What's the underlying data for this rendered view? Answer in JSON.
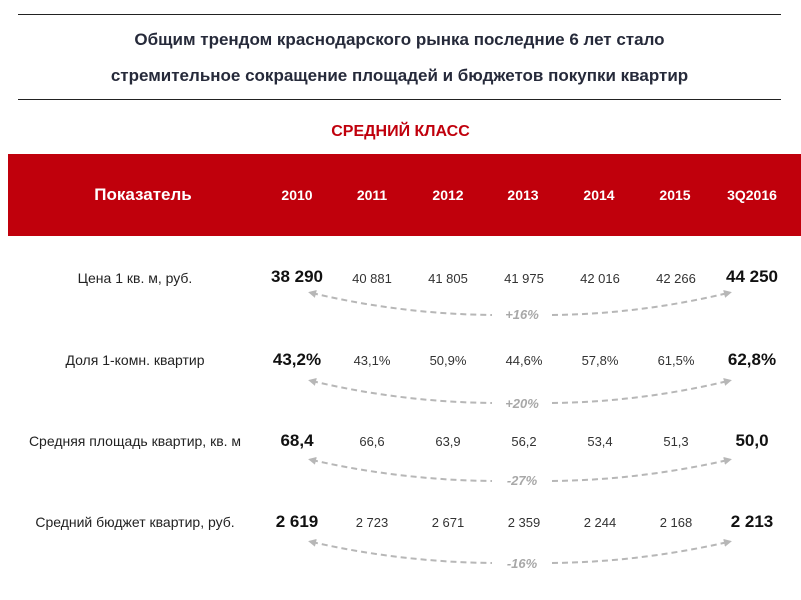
{
  "title": {
    "line1": "Общим трендом краснодарского рынка последние 6 лет стало",
    "line2": "стремительное сокращение площадей и бюджетов покупки квартир"
  },
  "subtitle": "СРЕДНИЙ КЛАСС",
  "colors": {
    "header_bg": "#c0000c",
    "subtitle": "#c0000c",
    "arc": "#b7b7b7"
  },
  "table": {
    "header": {
      "indicator": "Показатель",
      "years": [
        "2010",
        "2011",
        "2012",
        "2013",
        "2014",
        "2015",
        "3Q2016"
      ]
    },
    "rows": [
      {
        "label": "Цена 1 кв. м, руб.",
        "values": [
          "38 290",
          "40 881",
          "41 805",
          "41 975",
          "42 016",
          "42 266",
          "44 250"
        ],
        "change": "+16%"
      },
      {
        "label": "Доля 1-комн. квартир",
        "values": [
          "43,2%",
          "43,1%",
          "50,9%",
          "44,6%",
          "57,8%",
          "61,5%",
          "62,8%"
        ],
        "change": "+20%"
      },
      {
        "label": "Средняя площадь квартир, кв. м",
        "values": [
          "68,4",
          "66,6",
          "63,9",
          "56,2",
          "53,4",
          "51,3",
          "50,0"
        ],
        "change": "-27%"
      },
      {
        "label": "Средний бюджет квартир, руб.",
        "values": [
          "2 619",
          "2 723",
          "2 671",
          "2 359",
          "2 244",
          "2 168",
          "2 213"
        ],
        "change": "-16%"
      }
    ]
  }
}
